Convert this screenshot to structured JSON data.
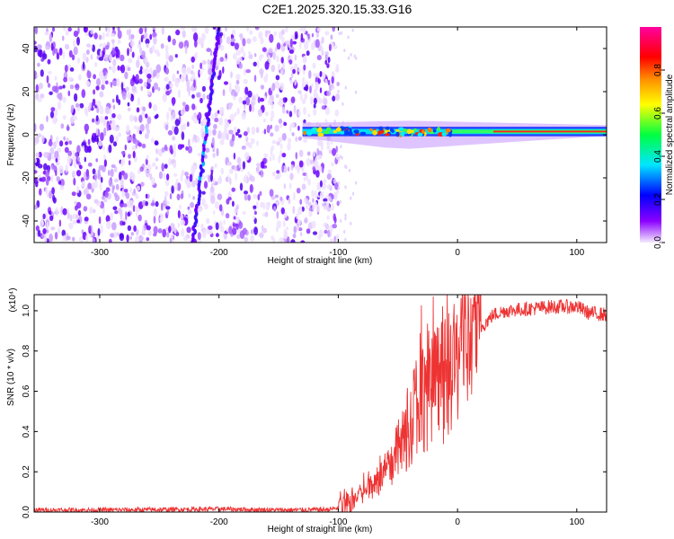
{
  "title": "C2E1.2025.320.15.33.G16",
  "chart_data": [
    {
      "type": "heatmap",
      "name": "spectrogram",
      "xlabel": "Height of straight line (km)",
      "ylabel": "Frequency (Hz)",
      "xlim": [
        -355,
        125
      ],
      "ylim": [
        -50,
        50
      ],
      "xticks": [
        -300,
        -200,
        -100,
        0,
        100
      ],
      "yticks": [
        -40,
        -20,
        0,
        20,
        40
      ],
      "noise_region_km": [
        -355,
        -100
      ],
      "carrier_region_km": [
        -130,
        125
      ],
      "carrier_frequency_hz": 1.5,
      "streak": {
        "from": [
          -222,
          -50
        ],
        "to": [
          -200,
          50
        ]
      },
      "colorbar": {
        "label": "Normalized spectral amplitude",
        "range": [
          0,
          1
        ],
        "ticks": [
          "0.0",
          "0.2",
          "0.4",
          "0.6",
          "0.8"
        ],
        "colors": [
          "#f5eaff",
          "#8a00ff",
          "#0000ff",
          "#00e6ff",
          "#00ff40",
          "#ffff00",
          "#ff8c00",
          "#ff0000",
          "#ff00a0"
        ]
      }
    },
    {
      "type": "line",
      "name": "snr",
      "xlabel": "Height of straight line (km)",
      "ylabel": "SNR (10 * v/v)",
      "scale_label": "(x10⁴)",
      "color": "#ee3333",
      "xlim": [
        -355,
        125
      ],
      "ylim": [
        0,
        1.08
      ],
      "xticks": [
        -300,
        -200,
        -100,
        0,
        100
      ],
      "yticks": [
        0.0,
        0.2,
        0.4,
        0.6,
        0.8,
        1.0
      ],
      "x": [
        -355,
        -300,
        -250,
        -200,
        -150,
        -110,
        -100,
        -90,
        -80,
        -70,
        -60,
        -50,
        -40,
        -30,
        -20,
        -10,
        0,
        10,
        20,
        30,
        40,
        60,
        80,
        100,
        110,
        125
      ],
      "y": [
        0.01,
        0.01,
        0.012,
        0.015,
        0.01,
        0.012,
        0.02,
        0.04,
        0.1,
        0.14,
        0.2,
        0.3,
        0.45,
        0.6,
        0.62,
        0.65,
        0.75,
        0.85,
        0.92,
        0.98,
        1.0,
        1.01,
        1.02,
        1.02,
        0.99,
        0.98
      ]
    }
  ]
}
